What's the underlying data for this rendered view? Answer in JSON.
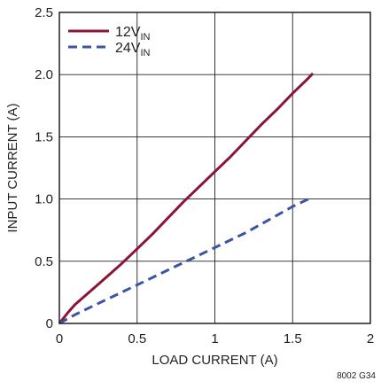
{
  "chart_data": {
    "type": "line",
    "xlabel": "LOAD CURRENT (A)",
    "ylabel": "INPUT CURRENT (A)",
    "xlim": [
      0,
      2
    ],
    "ylim": [
      0,
      2.5
    ],
    "x_ticks": [
      0,
      0.5,
      1,
      1.5,
      2
    ],
    "x_tick_labels": [
      "0",
      "0.5",
      "1",
      "1.5",
      "2"
    ],
    "y_ticks": [
      0,
      0.5,
      1,
      1.5,
      2,
      2.5
    ],
    "y_tick_labels": [
      "0",
      "0.5",
      "1.0",
      "1.5",
      "2.0",
      "2.5"
    ],
    "grid": true,
    "legend_position": "top-left",
    "series": [
      {
        "name": "12V",
        "name_subscript": "IN",
        "color": "#8b1538",
        "line_style": "solid",
        "x": [
          0,
          0.05,
          0.1,
          0.2,
          0.3,
          0.4,
          0.5,
          0.6,
          0.7,
          0.8,
          0.9,
          1.0,
          1.1,
          1.2,
          1.3,
          1.4,
          1.5,
          1.6,
          1.63
        ],
        "y": [
          0,
          0.08,
          0.15,
          0.26,
          0.37,
          0.48,
          0.6,
          0.72,
          0.85,
          0.98,
          1.1,
          1.22,
          1.34,
          1.47,
          1.6,
          1.72,
          1.85,
          1.97,
          2.01
        ]
      },
      {
        "name": "24V",
        "name_subscript": "IN",
        "color": "#3a55a3",
        "line_style": "dashed",
        "x": [
          0,
          0.1,
          0.2,
          0.3,
          0.4,
          0.5,
          0.6,
          0.7,
          0.8,
          0.9,
          1.0,
          1.1,
          1.2,
          1.3,
          1.4,
          1.5,
          1.62
        ],
        "y": [
          0,
          0.07,
          0.13,
          0.19,
          0.25,
          0.31,
          0.37,
          0.43,
          0.49,
          0.55,
          0.61,
          0.67,
          0.73,
          0.8,
          0.87,
          0.94,
          1.01
        ]
      }
    ]
  },
  "figure_code": "8002 G34"
}
